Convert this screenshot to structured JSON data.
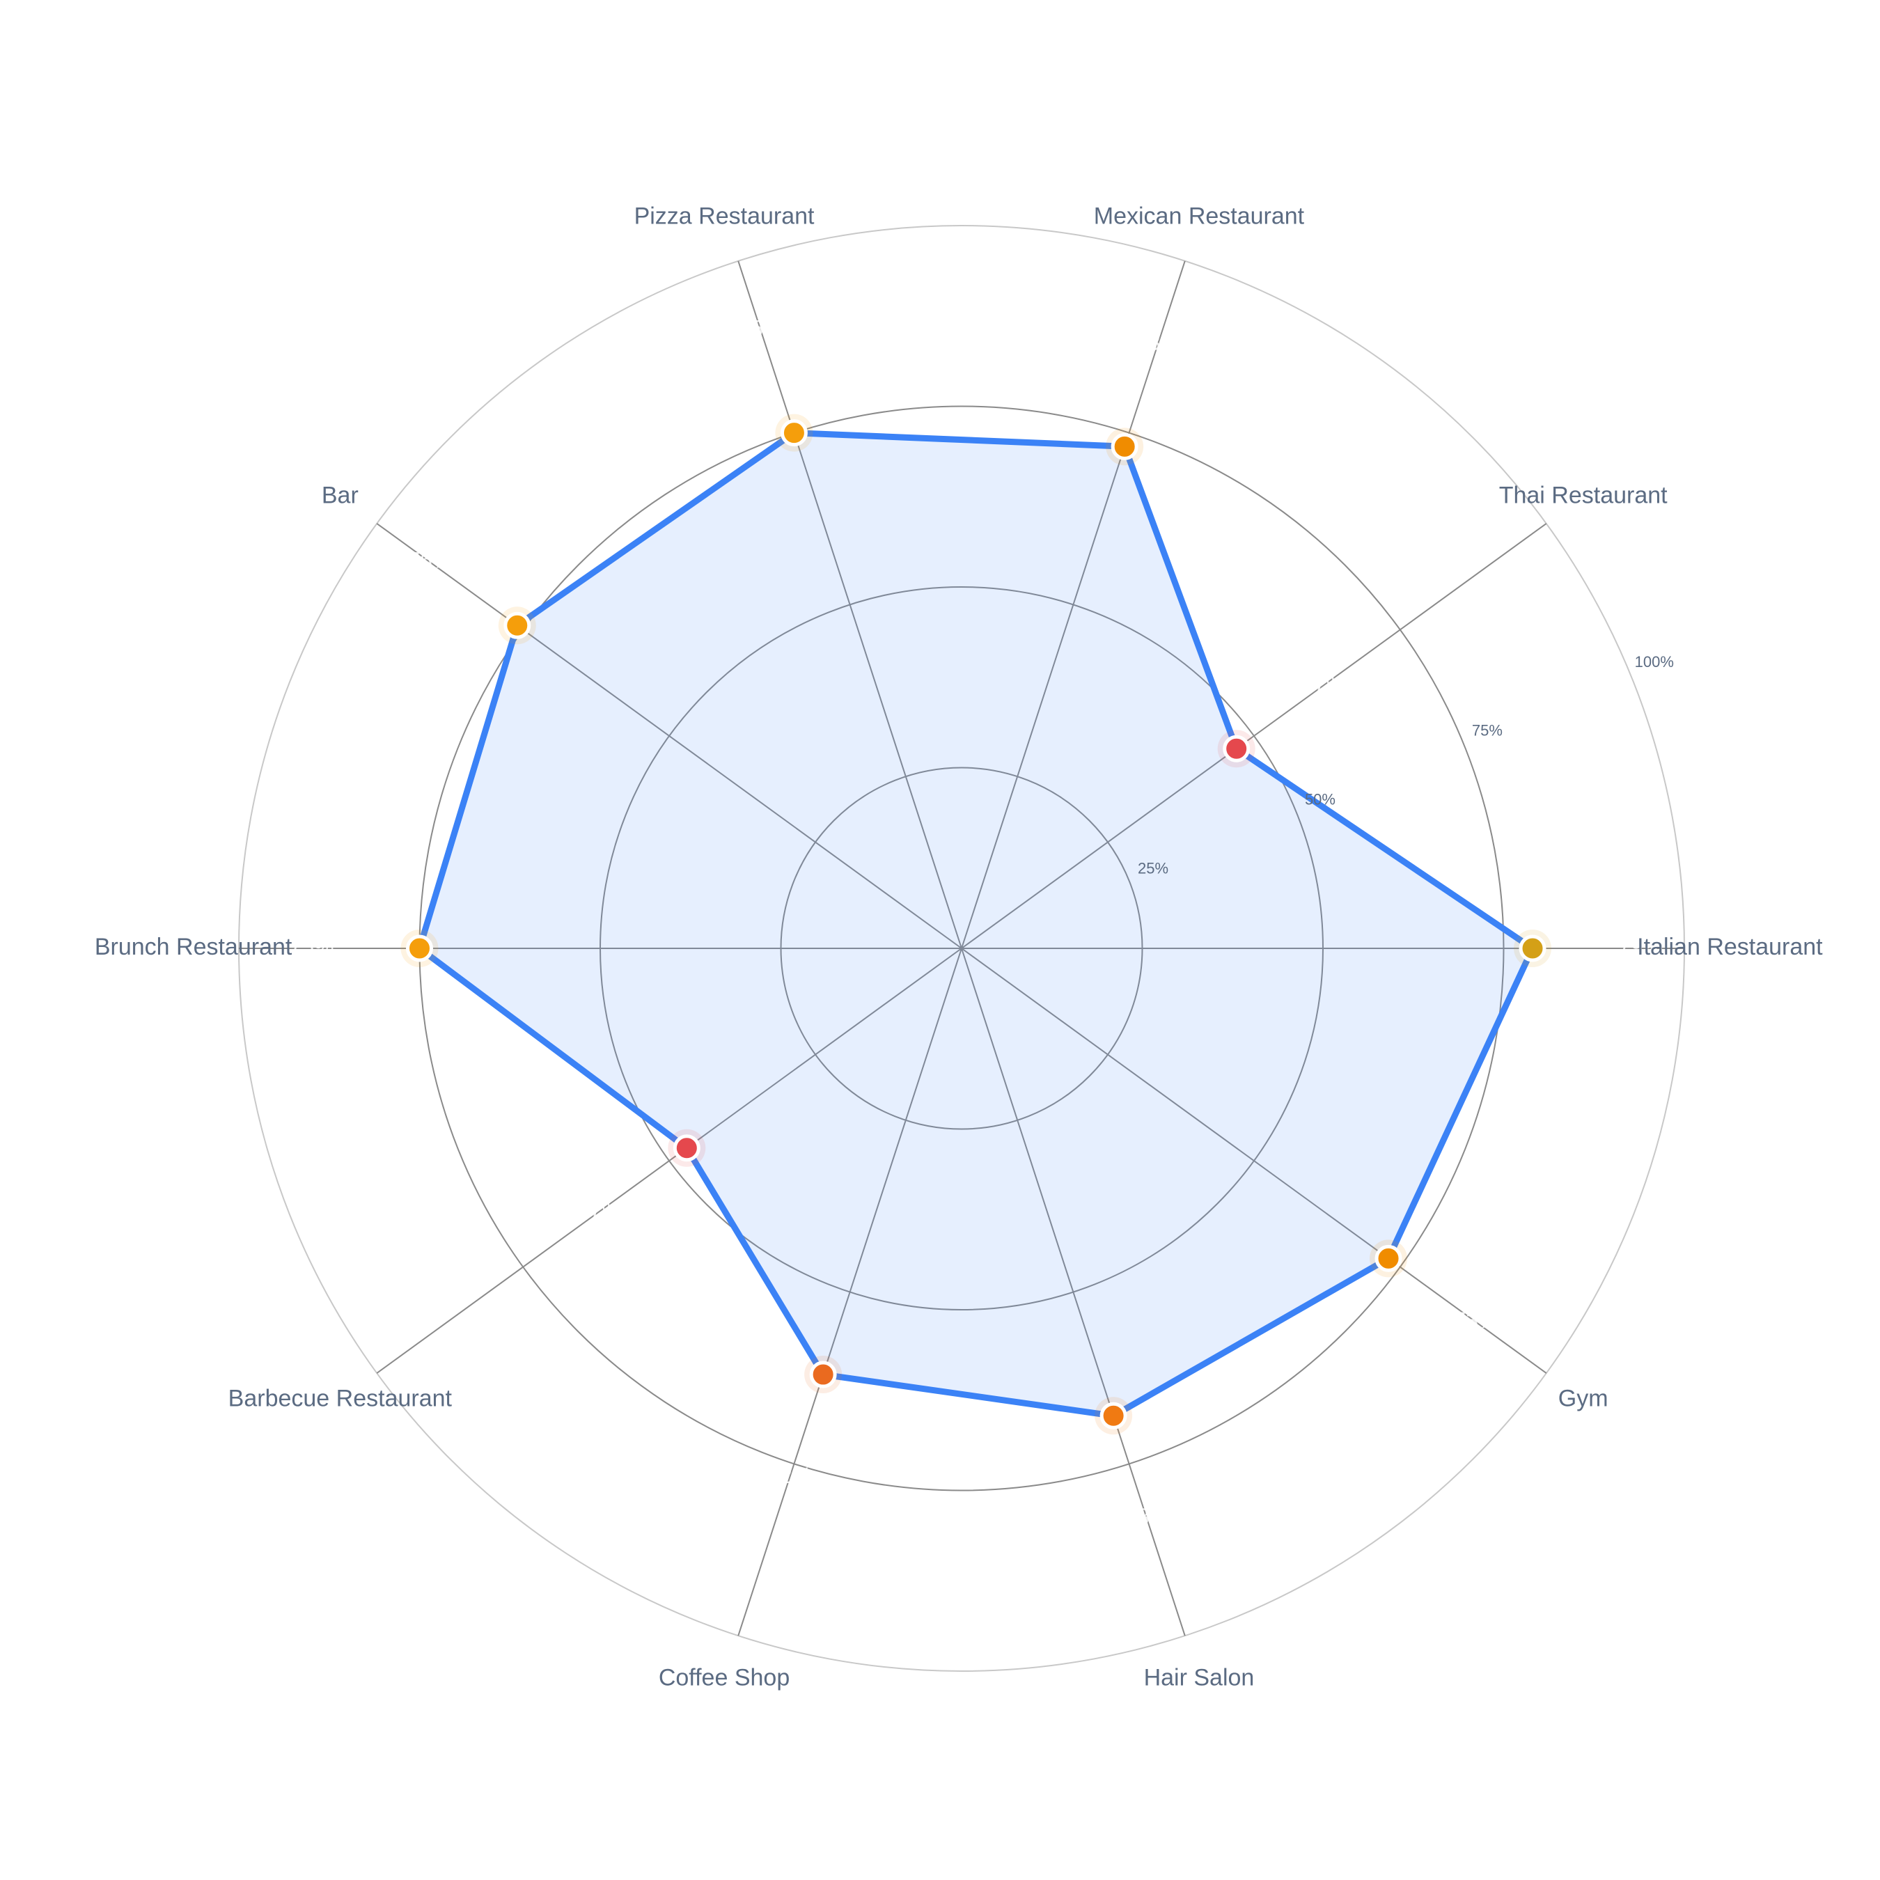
{
  "chart_data": {
    "type": "radar",
    "categories": [
      "Italian Restaurant",
      "Thai Restaurant",
      "Mexican Restaurant",
      "Pizza Restaurant",
      "Bar",
      "Brunch Restaurant",
      "Barbecue Restaurant",
      "Coffee Shop",
      "Hair Salon",
      "Gym"
    ],
    "values": [
      79,
      47,
      73,
      75,
      76,
      75,
      47,
      62,
      68,
      73
    ],
    "value_labels": [
      "79%",
      "47%",
      "73%",
      "75%",
      "76%",
      "75%",
      "47%",
      "62%",
      "68%",
      "73%"
    ],
    "color": "#3b82f6",
    "point_colors": [
      "#d4a017",
      "#e5484d",
      "#f08c00",
      "#f59e0b",
      "#f59e0b",
      "#f59e0b",
      "#e5484d",
      "#ea6a1f",
      "#f07a12",
      "#f08c00"
    ],
    "rlim": [
      0,
      100
    ],
    "rticks": [
      {
        "value": 25,
        "label": "25%"
      },
      {
        "value": 50,
        "label": "50%"
      },
      {
        "value": 75,
        "label": "75%"
      },
      {
        "value": 100,
        "label": "100%"
      }
    ],
    "grid": true
  }
}
